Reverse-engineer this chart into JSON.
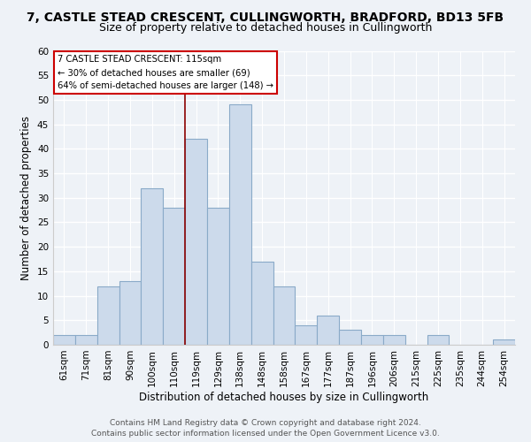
{
  "title": "7, CASTLE STEAD CRESCENT, CULLINGWORTH, BRADFORD, BD13 5FB",
  "subtitle": "Size of property relative to detached houses in Cullingworth",
  "xlabel": "Distribution of detached houses by size in Cullingworth",
  "ylabel": "Number of detached properties",
  "bar_color": "#ccdaeb",
  "bar_edge_color": "#8aaac8",
  "categories": [
    "61sqm",
    "71sqm",
    "81sqm",
    "90sqm",
    "100sqm",
    "110sqm",
    "119sqm",
    "129sqm",
    "138sqm",
    "148sqm",
    "158sqm",
    "167sqm",
    "177sqm",
    "187sqm",
    "196sqm",
    "206sqm",
    "215sqm",
    "225sqm",
    "235sqm",
    "244sqm",
    "254sqm"
  ],
  "values": [
    2,
    2,
    12,
    13,
    32,
    28,
    42,
    28,
    49,
    17,
    12,
    4,
    6,
    3,
    2,
    2,
    0,
    2,
    0,
    0,
    1
  ],
  "ylim": [
    0,
    60
  ],
  "yticks": [
    0,
    5,
    10,
    15,
    20,
    25,
    30,
    35,
    40,
    45,
    50,
    55,
    60
  ],
  "property_line_label": "7 CASTLE STEAD CRESCENT: 115sqm",
  "annotation_line1": "← 30% of detached houses are smaller (69)",
  "annotation_line2": "64% of semi-detached houses are larger (148) →",
  "annotation_box_color": "#ffffff",
  "annotation_border_color": "#cc0000",
  "footer1": "Contains HM Land Registry data © Crown copyright and database right 2024.",
  "footer2": "Contains public sector information licensed under the Open Government Licence v3.0.",
  "background_color": "#eef2f7",
  "grid_color": "#ffffff",
  "title_fontsize": 10,
  "subtitle_fontsize": 9,
  "axis_label_fontsize": 8.5,
  "tick_fontsize": 7.5,
  "footer_fontsize": 6.5
}
